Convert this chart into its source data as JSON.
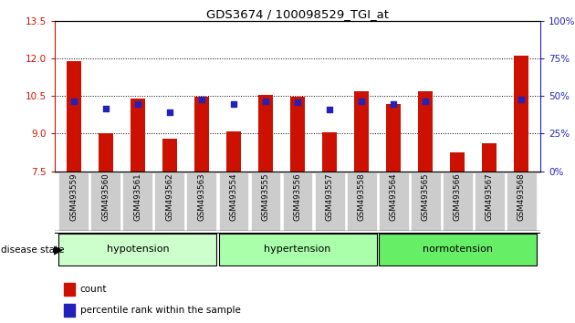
{
  "title": "GDS3674 / 100098529_TGI_at",
  "samples": [
    "GSM493559",
    "GSM493560",
    "GSM493561",
    "GSM493562",
    "GSM493563",
    "GSM493554",
    "GSM493555",
    "GSM493556",
    "GSM493557",
    "GSM493558",
    "GSM493564",
    "GSM493565",
    "GSM493566",
    "GSM493567",
    "GSM493568"
  ],
  "red_values": [
    11.9,
    9.0,
    10.4,
    8.8,
    10.47,
    9.1,
    10.55,
    10.47,
    9.05,
    10.7,
    10.2,
    10.7,
    8.25,
    8.6,
    12.1
  ],
  "blue_y": [
    10.3,
    null,
    10.2,
    null,
    10.35,
    10.2,
    10.3,
    10.25,
    null,
    10.3,
    10.2,
    10.3,
    null,
    null,
    10.35
  ],
  "blue_present": [
    true,
    true,
    true,
    true,
    true,
    true,
    true,
    true,
    true,
    true,
    true,
    true,
    false,
    false,
    true
  ],
  "blue_approx": [
    10.3,
    10.0,
    10.2,
    9.85,
    10.35,
    10.2,
    10.3,
    10.25,
    9.95,
    10.3,
    10.2,
    10.3,
    0,
    0,
    10.35
  ],
  "ymin": 7.5,
  "ymax": 13.5,
  "yticks": [
    7.5,
    9.0,
    10.5,
    12.0,
    13.5
  ],
  "right_yticks": [
    0,
    25,
    50,
    75,
    100
  ],
  "bar_color": "#cc1100",
  "marker_color": "#2222bb",
  "bg_color": "#ffffff",
  "label_bg": "#cccccc",
  "groups": [
    {
      "label": "hypotension",
      "start": 0,
      "end": 4,
      "color": "#ccffcc"
    },
    {
      "label": "hypertension",
      "start": 5,
      "end": 9,
      "color": "#aaffaa"
    },
    {
      "label": "normotension",
      "start": 10,
      "end": 14,
      "color": "#66ee66"
    }
  ]
}
